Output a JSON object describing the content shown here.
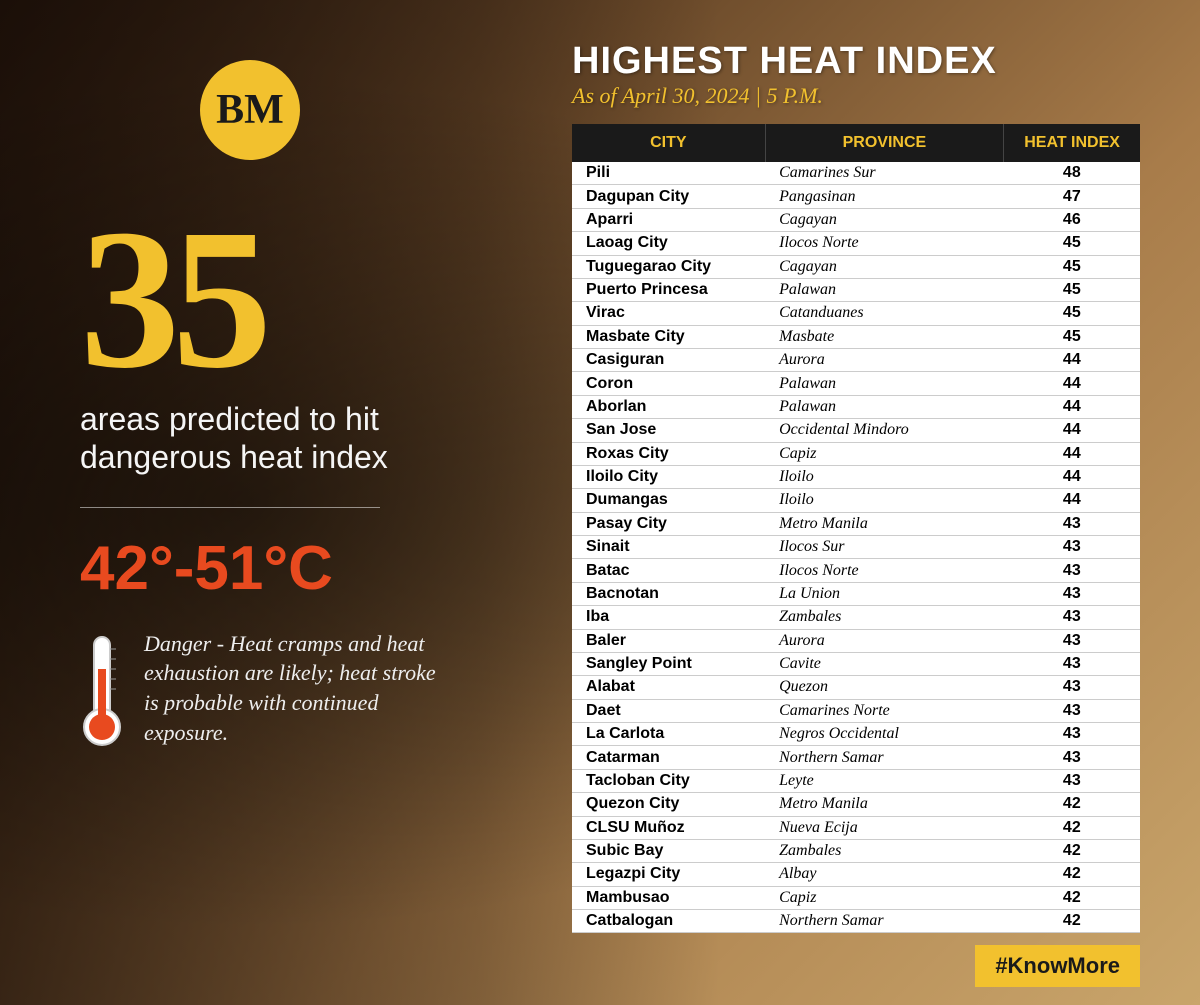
{
  "logo": {
    "text": "BM"
  },
  "headline": {
    "number": "35",
    "subhead": "areas predicted to hit dangerous heat index"
  },
  "temp": {
    "range": "42°-51°C",
    "warning": "Danger - Heat cramps and heat exhaustion are likely; heat stroke is probable with continued exposure."
  },
  "table": {
    "title": "HIGHEST HEAT INDEX",
    "subtitle": "As of April 30, 2024 | 5 P.M.",
    "columns": {
      "city": "CITY",
      "province": "PROVINCE",
      "hi": "HEAT INDEX"
    },
    "rows": [
      {
        "city": "Pili",
        "province": "Camarines Sur",
        "hi": "48"
      },
      {
        "city": "Dagupan City",
        "province": "Pangasinan",
        "hi": "47"
      },
      {
        "city": "Aparri",
        "province": "Cagayan",
        "hi": "46"
      },
      {
        "city": "Laoag City",
        "province": "Ilocos Norte",
        "hi": "45"
      },
      {
        "city": "Tuguegarao City",
        "province": "Cagayan",
        "hi": "45"
      },
      {
        "city": "Puerto Princesa",
        "province": "Palawan",
        "hi": "45"
      },
      {
        "city": "Virac",
        "province": "Catanduanes",
        "hi": "45"
      },
      {
        "city": "Masbate City",
        "province": "Masbate",
        "hi": "45"
      },
      {
        "city": "Casiguran",
        "province": "Aurora",
        "hi": "44"
      },
      {
        "city": "Coron",
        "province": "Palawan",
        "hi": "44"
      },
      {
        "city": "Aborlan",
        "province": "Palawan",
        "hi": "44"
      },
      {
        "city": "San Jose",
        "province": "Occidental Mindoro",
        "hi": "44"
      },
      {
        "city": "Roxas City",
        "province": "Capiz",
        "hi": "44"
      },
      {
        "city": "Iloilo City",
        "province": "Iloilo",
        "hi": "44"
      },
      {
        "city": "Dumangas",
        "province": "Iloilo",
        "hi": "44"
      },
      {
        "city": "Pasay City",
        "province": "Metro Manila",
        "hi": "43"
      },
      {
        "city": "Sinait",
        "province": "Ilocos Sur",
        "hi": "43"
      },
      {
        "city": "Batac",
        "province": "Ilocos Norte",
        "hi": "43"
      },
      {
        "city": "Bacnotan",
        "province": "La Union",
        "hi": "43"
      },
      {
        "city": "Iba",
        "province": "Zambales",
        "hi": "43"
      },
      {
        "city": "Baler",
        "province": "Aurora",
        "hi": "43"
      },
      {
        "city": "Sangley Point",
        "province": "Cavite",
        "hi": "43"
      },
      {
        "city": "Alabat",
        "province": "Quezon",
        "hi": "43"
      },
      {
        "city": "Daet",
        "province": "Camarines Norte",
        "hi": "43"
      },
      {
        "city": "La Carlota",
        "province": "Negros Occidental",
        "hi": "43"
      },
      {
        "city": "Catarman",
        "province": "Northern Samar",
        "hi": "43"
      },
      {
        "city": "Tacloban City",
        "province": "Leyte",
        "hi": "43"
      },
      {
        "city": "Quezon City",
        "province": "Metro Manila",
        "hi": "42"
      },
      {
        "city": "CLSU Muñoz",
        "province": "Nueva Ecija",
        "hi": "42"
      },
      {
        "city": "Subic Bay",
        "province": "Zambales",
        "hi": "42"
      },
      {
        "city": "Legazpi City",
        "province": "Albay",
        "hi": "42"
      },
      {
        "city": "Mambusao",
        "province": "Capiz",
        "hi": "42"
      },
      {
        "city": "Catbalogan",
        "province": "Northern Samar",
        "hi": "42"
      }
    ]
  },
  "hashtag": "#KnowMore",
  "colors": {
    "accent": "#f2c12e",
    "danger": "#e84a1f",
    "table_header_bg": "#1a1a1a",
    "table_bg": "#ffffff"
  }
}
